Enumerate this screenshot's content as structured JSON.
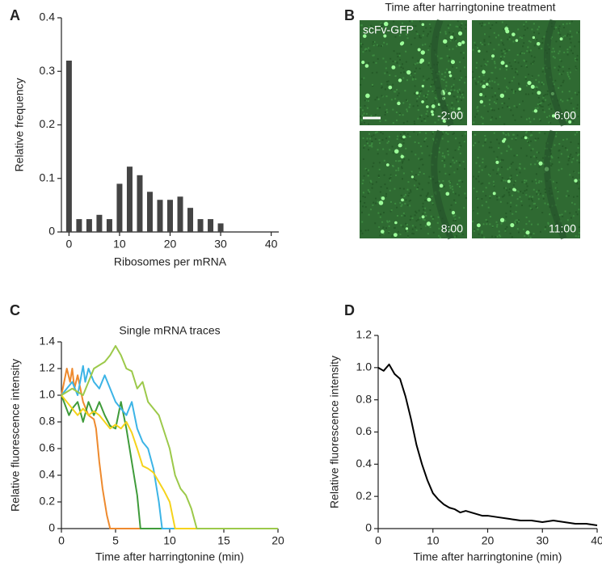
{
  "chart_data": [
    {
      "type": "bar",
      "panel_label": "A",
      "xlabel": "Ribosomes per mRNA",
      "ylabel": "Relative frequency",
      "color": "#444444",
      "x": [
        0,
        2,
        4,
        6,
        8,
        10,
        12,
        14,
        16,
        18,
        20,
        22,
        24,
        26,
        28,
        30
      ],
      "values": [
        0.32,
        0.024,
        0.024,
        0.032,
        0.024,
        0.09,
        0.122,
        0.106,
        0.075,
        0.06,
        0.06,
        0.066,
        0.045,
        0.024,
        0.024,
        0.016
      ],
      "xlim": [
        -1.5,
        41.5
      ],
      "xticks": [
        0,
        10,
        20,
        30,
        40
      ],
      "ylim": [
        0,
        0.4
      ],
      "yticks": [
        0,
        0.1,
        0.2,
        0.3,
        0.4
      ],
      "grid": false
    },
    {
      "type": "line",
      "panel_label": "C",
      "title": "Single mRNA traces",
      "xlabel": "Time after harringtonine (min)",
      "ylabel": "Relative fluorescence intensity",
      "xlim": [
        0,
        20
      ],
      "xticks": [
        0,
        5,
        10,
        15,
        20
      ],
      "ylim": [
        0,
        1.4
      ],
      "yticks": [
        0,
        0.2,
        0.4,
        0.6,
        0.8,
        {
          "value": 1,
          "label": "1.0"
        },
        1.2,
        1.4
      ],
      "grid": false,
      "series": [
        {
          "color": "#ee8a2e",
          "x": [
            0,
            0.5,
            0.8,
            1,
            1.2,
            1.5,
            2,
            2.5,
            3,
            3.2,
            3.5,
            3.8,
            4.2,
            4.5,
            20
          ],
          "values": [
            1.0,
            1.2,
            1.1,
            1.2,
            1.05,
            1.15,
            0.95,
            0.85,
            0.82,
            0.75,
            0.5,
            0.3,
            0.1,
            0,
            0
          ]
        },
        {
          "color": "#3f9b3a",
          "x": [
            0,
            0.7,
            1,
            1.5,
            2,
            2.5,
            3,
            3.5,
            4,
            4.5,
            5,
            5.5,
            6,
            6.5,
            7,
            7.3,
            20
          ],
          "values": [
            1.0,
            0.85,
            0.9,
            0.95,
            0.8,
            0.95,
            0.85,
            0.95,
            0.85,
            0.77,
            0.75,
            0.95,
            0.75,
            0.5,
            0.25,
            0,
            0
          ]
        },
        {
          "color": "#3cb4e6",
          "x": [
            0,
            1,
            1.5,
            2,
            2.2,
            2.5,
            3,
            3.5,
            4,
            4.5,
            5,
            5.5,
            6,
            6.5,
            7,
            7.5,
            8,
            8.5,
            9,
            9.3,
            20
          ],
          "values": [
            1.0,
            1.1,
            1.0,
            1.22,
            1.1,
            1.2,
            1.1,
            1.05,
            1.15,
            1.05,
            0.95,
            0.9,
            0.85,
            0.95,
            0.75,
            0.65,
            0.6,
            0.45,
            0.2,
            0,
            0
          ]
        },
        {
          "color": "#f5d31c",
          "x": [
            0,
            1,
            1.5,
            2,
            2.5,
            3,
            3.5,
            4,
            4.5,
            5,
            5.5,
            6,
            6.5,
            7,
            7.5,
            8,
            8.5,
            9,
            9.5,
            10,
            10.5,
            20
          ],
          "values": [
            1.0,
            0.9,
            0.85,
            0.9,
            0.85,
            0.88,
            0.85,
            0.8,
            0.75,
            0.78,
            0.75,
            0.8,
            0.72,
            0.6,
            0.47,
            0.45,
            0.42,
            0.35,
            0.28,
            0.2,
            0,
            0
          ]
        },
        {
          "color": "#9cc94a",
          "x": [
            0,
            1,
            2,
            3,
            4,
            4.5,
            5,
            5.5,
            6,
            6.5,
            7,
            7.5,
            8,
            9,
            10,
            10.5,
            11,
            11.5,
            12,
            12.5,
            20
          ],
          "values": [
            1.0,
            1.05,
            1.0,
            1.2,
            1.25,
            1.3,
            1.37,
            1.3,
            1.2,
            1.18,
            1.05,
            1.1,
            0.95,
            0.85,
            0.6,
            0.4,
            0.3,
            0.25,
            0.15,
            0,
            0
          ]
        }
      ]
    },
    {
      "type": "line",
      "panel_label": "D",
      "xlabel": "Time after harringtonine (min)",
      "ylabel": "Relative fluorescence intensity",
      "color": "#000000",
      "x": [
        0,
        1,
        2,
        3,
        4,
        5,
        6,
        7,
        8,
        9,
        10,
        11,
        12,
        13,
        14,
        15,
        16,
        17,
        18,
        19,
        20,
        22,
        24,
        26,
        28,
        30,
        32,
        34,
        36,
        38,
        40
      ],
      "values": [
        1.0,
        0.98,
        1.02,
        0.96,
        0.93,
        0.82,
        0.68,
        0.52,
        0.4,
        0.3,
        0.22,
        0.18,
        0.15,
        0.13,
        0.12,
        0.1,
        0.11,
        0.1,
        0.09,
        0.08,
        0.08,
        0.07,
        0.06,
        0.05,
        0.05,
        0.04,
        0.05,
        0.04,
        0.03,
        0.03,
        0.02
      ],
      "xlim": [
        0,
        40
      ],
      "xticks": [
        0,
        10,
        20,
        30,
        40
      ],
      "ylim": [
        0,
        1.2
      ],
      "yticks": [
        0,
        0.2,
        0.4,
        0.6,
        0.8,
        {
          "value": 1,
          "label": "1.0"
        },
        1.2
      ],
      "grid": false
    }
  ],
  "image_panel": {
    "panel_label": "B",
    "title": "Time after harringtonine treatment",
    "channel_label": "scFv-GFP",
    "timepoints": [
      "-2:00",
      "6:00",
      "8:00",
      "11:00"
    ]
  }
}
